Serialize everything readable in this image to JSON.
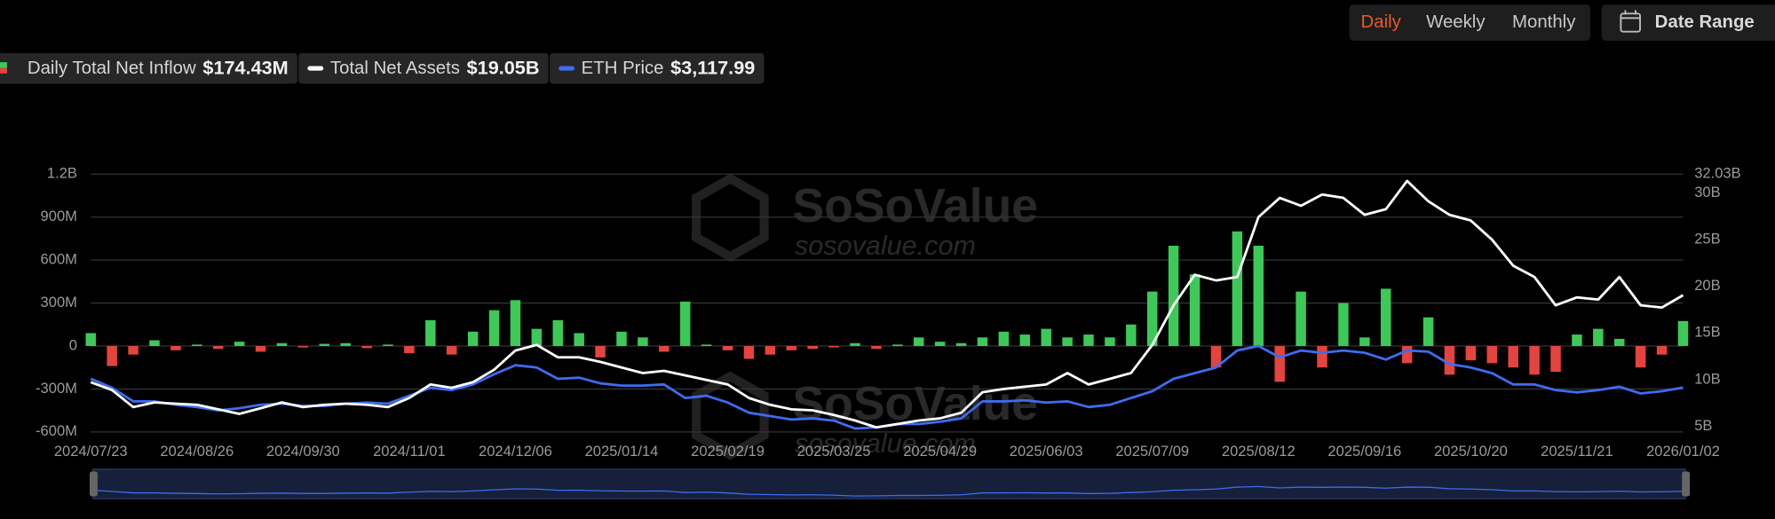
{
  "chart_data": {
    "type": "combo",
    "controls": {
      "intervals": [
        "Daily",
        "Weekly",
        "Monthly"
      ],
      "date_range": "Date Range"
    },
    "watermark": [
      "SoSoValue",
      "sosovalue.com"
    ],
    "categories": [
      "2024/07/23",
      null,
      null,
      null,
      null,
      "2024/08/26",
      null,
      null,
      null,
      null,
      "2024/09/30",
      null,
      null,
      null,
      null,
      "2024/11/01",
      null,
      null,
      null,
      null,
      "2024/12/06",
      null,
      null,
      null,
      null,
      "2025/01/14",
      null,
      null,
      null,
      null,
      "2025/02/19",
      null,
      null,
      null,
      null,
      "2025/03/25",
      null,
      null,
      null,
      null,
      "2025/04/29",
      null,
      null,
      null,
      null,
      "2025/06/03",
      null,
      null,
      null,
      null,
      "2025/07/09",
      null,
      null,
      null,
      null,
      "2025/08/12",
      null,
      null,
      null,
      null,
      "2025/09/16",
      null,
      null,
      null,
      null,
      "2025/10/20",
      null,
      null,
      null,
      null,
      "2025/11/21",
      null,
      null,
      null,
      null,
      "2026/01/02"
    ],
    "ylim": [
      -600,
      1200
    ],
    "yticks": [
      {
        "value": -600,
        "label": "-600M"
      },
      {
        "value": -300,
        "label": "-300M"
      },
      0,
      {
        "value": 300,
        "label": "300M"
      },
      {
        "value": 600,
        "label": "600M"
      },
      {
        "value": 900,
        "label": "900M"
      },
      {
        "value": 1200,
        "label": "1.2B"
      }
    ],
    "y2lim": [
      4.39,
      32.03
    ],
    "y2ticks": [
      {
        "value": 5,
        "label": "5B"
      },
      {
        "value": 10,
        "label": "10B"
      },
      {
        "value": 15,
        "label": "15B"
      },
      {
        "value": 20,
        "label": "20B"
      },
      {
        "value": 25,
        "label": "25B"
      },
      {
        "value": 30,
        "label": "30B"
      },
      {
        "value": 32.03,
        "label": "32.03B"
      }
    ],
    "y3lim": [
      1400,
      11400
    ],
    "grid": true,
    "series": [
      {
        "name": "Daily Total Net Inflow",
        "type": "bar",
        "color": "#3cc957",
        "negative_color": "#e4443e",
        "values": [
          90,
          -140,
          -60,
          40,
          -30,
          10,
          -20,
          30,
          -40,
          20,
          -10,
          15,
          20,
          -15,
          10,
          -50,
          180,
          -60,
          100,
          250,
          320,
          120,
          180,
          90,
          -80,
          100,
          60,
          -40,
          310,
          10,
          -30,
          -90,
          -60,
          -30,
          -20,
          -10,
          20,
          -20,
          10,
          60,
          30,
          20,
          60,
          100,
          80,
          120,
          60,
          80,
          60,
          150,
          380,
          700,
          500,
          -150,
          800,
          700,
          -250,
          380,
          -150,
          300,
          60,
          400,
          -120,
          200,
          -200,
          -100,
          -120,
          -150,
          -200,
          -180,
          80,
          120,
          50,
          -150,
          -60,
          174.43
        ],
        "value_labels": [
          null,
          null,
          null,
          null,
          null,
          null,
          null,
          null,
          null,
          null,
          null,
          null,
          null,
          null,
          null,
          null,
          null,
          null,
          null,
          null,
          null,
          null,
          null,
          null,
          null,
          null,
          null,
          null,
          null,
          null,
          null,
          null,
          null,
          null,
          null,
          null,
          null,
          null,
          null,
          null,
          null,
          null,
          null,
          null,
          null,
          null,
          null,
          null,
          null,
          null,
          null,
          null,
          null,
          null,
          null,
          null,
          null,
          null,
          null,
          null,
          null,
          null,
          null,
          null,
          null,
          null,
          null,
          null,
          null,
          null,
          null,
          null,
          null,
          null,
          null,
          "$174.43M"
        ]
      },
      {
        "name": "Total Net Assets",
        "type": "line",
        "axis": "y2",
        "color": "#ffffff",
        "values": [
          9.73,
          8.88,
          7.06,
          7.55,
          7.42,
          7.3,
          6.82,
          6.33,
          6.94,
          7.55,
          7.06,
          7.3,
          7.42,
          7.3,
          7.06,
          8.03,
          9.48,
          9.12,
          9.73,
          11.06,
          13.12,
          13.73,
          12.39,
          12.39,
          11.91,
          11.3,
          10.7,
          10.94,
          10.45,
          9.97,
          9.48,
          8.03,
          7.3,
          6.82,
          6.7,
          6.21,
          5.61,
          4.88,
          5.24,
          5.61,
          5.85,
          6.45,
          8.64,
          9.0,
          9.24,
          9.48,
          10.7,
          9.48,
          10.09,
          10.7,
          13.73,
          17.97,
          21.24,
          20.64,
          21.0,
          27.42,
          29.48,
          28.64,
          29.85,
          29.48,
          27.67,
          28.27,
          31.3,
          29.12,
          27.67,
          27.06,
          25.0,
          22.21,
          21.0,
          17.97,
          18.82,
          18.58,
          21.0,
          17.97,
          17.73,
          19.05
        ],
        "value_labels": [
          null,
          null,
          null,
          null,
          null,
          null,
          null,
          null,
          null,
          null,
          null,
          null,
          null,
          null,
          null,
          null,
          null,
          null,
          null,
          null,
          null,
          null,
          null,
          null,
          null,
          null,
          null,
          null,
          null,
          null,
          null,
          null,
          null,
          null,
          null,
          null,
          null,
          null,
          null,
          null,
          null,
          null,
          null,
          null,
          null,
          null,
          null,
          null,
          null,
          null,
          null,
          null,
          null,
          null,
          null,
          null,
          null,
          null,
          null,
          null,
          null,
          null,
          null,
          null,
          null,
          null,
          null,
          null,
          null,
          null,
          null,
          null,
          null,
          null,
          null,
          "$19.05B"
        ]
      },
      {
        "name": "ETH Price",
        "type": "line",
        "axis": "y3",
        "color": "#3d6cf0",
        "values": [
          3461,
          3111,
          2584,
          2584,
          2453,
          2365,
          2233,
          2321,
          2453,
          2497,
          2409,
          2409,
          2497,
          2540,
          2497,
          2804,
          3111,
          3023,
          3242,
          3637,
          3988,
          3900,
          3461,
          3505,
          3286,
          3198,
          3198,
          3242,
          2716,
          2804,
          2540,
          2146,
          2014,
          1882,
          1926,
          1838,
          1532,
          1575,
          1707,
          1707,
          1795,
          1926,
          2584,
          2584,
          2628,
          2540,
          2584,
          2365,
          2453,
          2716,
          2979,
          3461,
          3681,
          3900,
          4558,
          4733,
          4295,
          4558,
          4470,
          4558,
          4470,
          4207,
          4558,
          4514,
          4032,
          3900,
          3681,
          3242,
          3242,
          3023,
          2935,
          3023,
          3154,
          2891,
          2979,
          3117.99
        ],
        "value_labels": [
          null,
          null,
          null,
          null,
          null,
          null,
          null,
          null,
          null,
          null,
          null,
          null,
          null,
          null,
          null,
          null,
          null,
          null,
          null,
          null,
          null,
          null,
          null,
          null,
          null,
          null,
          null,
          null,
          null,
          null,
          null,
          null,
          null,
          null,
          null,
          null,
          null,
          null,
          null,
          null,
          null,
          null,
          null,
          null,
          null,
          null,
          null,
          null,
          null,
          null,
          null,
          null,
          null,
          null,
          null,
          null,
          null,
          null,
          null,
          null,
          null,
          null,
          null,
          null,
          null,
          null,
          null,
          null,
          null,
          null,
          null,
          null,
          null,
          null,
          null,
          "$3,117.99"
        ]
      }
    ]
  }
}
